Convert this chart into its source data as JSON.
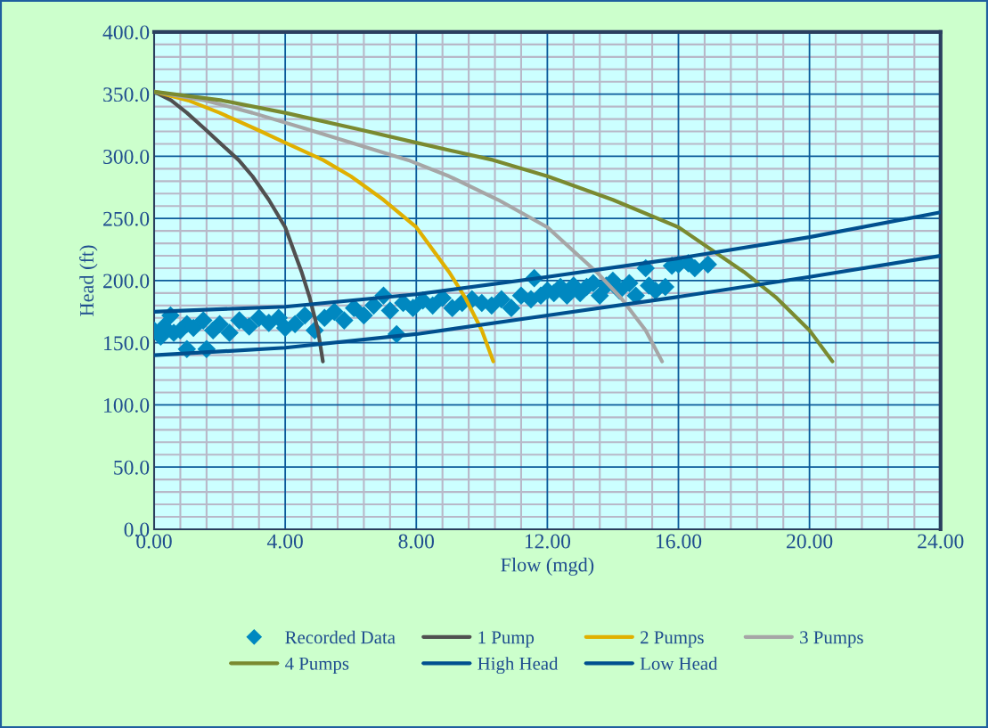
{
  "chart_data": {
    "type": "line",
    "xlabel": "Flow (mgd)",
    "ylabel": "Head (ft)",
    "xlim": [
      0,
      24
    ],
    "ylim": [
      0,
      400
    ],
    "xticks": [
      {
        "value": 0,
        "label": "0.00"
      },
      {
        "value": 4,
        "label": "4.00"
      },
      {
        "value": 8,
        "label": "8.00"
      },
      {
        "value": 12,
        "label": "12.00"
      },
      {
        "value": 16,
        "label": "16.00"
      },
      {
        "value": 20,
        "label": "20.00"
      },
      {
        "value": 24,
        "label": "24.00"
      }
    ],
    "yticks": [
      {
        "value": 0,
        "label": "0.0"
      },
      {
        "value": 50,
        "label": "50.0"
      },
      {
        "value": 100,
        "label": "100.0"
      },
      {
        "value": 150,
        "label": "150.0"
      },
      {
        "value": 200,
        "label": "200.0"
      },
      {
        "value": 250,
        "label": "250.0"
      },
      {
        "value": 300,
        "label": "300.0"
      },
      {
        "value": 350,
        "label": "350.0"
      },
      {
        "value": 400,
        "label": "400.0"
      }
    ],
    "grid": true,
    "legend": "bottom",
    "series": [
      {
        "name": "Recorded Data",
        "type": "scatter",
        "marker": "diamond",
        "color": "#0088c0",
        "x": [
          0.0,
          0.2,
          0.3,
          0.5,
          0.6,
          0.8,
          1.0,
          1.0,
          1.2,
          1.5,
          1.6,
          1.8,
          2.0,
          2.3,
          2.6,
          2.9,
          3.2,
          3.5,
          3.8,
          4.0,
          4.3,
          4.6,
          4.9,
          5.2,
          5.5,
          5.8,
          6.1,
          6.4,
          6.7,
          7.0,
          7.2,
          7.4,
          7.6,
          7.9,
          8.2,
          8.5,
          8.8,
          9.1,
          9.4,
          9.7,
          10.0,
          10.3,
          10.6,
          10.9,
          11.2,
          11.5,
          11.6,
          11.8,
          12.0,
          12.2,
          12.4,
          12.6,
          12.8,
          13.0,
          13.2,
          13.4,
          13.6,
          13.8,
          14.0,
          14.2,
          14.5,
          14.7,
          15.0,
          15.1,
          15.3,
          15.6,
          15.8,
          16.0,
          16.3,
          16.5,
          16.9
        ],
        "values": [
          160,
          155,
          163,
          172,
          158,
          160,
          145,
          165,
          162,
          168,
          145,
          160,
          165,
          158,
          168,
          163,
          170,
          166,
          170,
          162,
          165,
          172,
          160,
          170,
          175,
          168,
          178,
          172,
          180,
          188,
          176,
          157,
          182,
          178,
          184,
          180,
          186,
          178,
          182,
          185,
          182,
          180,
          185,
          178,
          188,
          185,
          202,
          188,
          192,
          190,
          195,
          188,
          196,
          190,
          195,
          198,
          188,
          196,
          200,
          192,
          198,
          188,
          210,
          196,
          192,
          195,
          212,
          213,
          214,
          210,
          213
        ]
      },
      {
        "name": "1 Pump",
        "color": "#505050",
        "x": [
          0,
          0.52,
          1.0,
          1.55,
          2.0,
          2.58,
          3.0,
          3.5,
          4.0,
          4.5,
          4.75,
          5.0,
          5.15
        ],
        "values": [
          352,
          345,
          335,
          322,
          311,
          297,
          284,
          265,
          243,
          207,
          186,
          160,
          135
        ]
      },
      {
        "name": "2 Pumps",
        "color": "#e0b000",
        "x": [
          0,
          1.04,
          2.0,
          3.1,
          4.0,
          5.16,
          6.0,
          7.0,
          8.0,
          9.0,
          9.5,
          10.0,
          10.35
        ],
        "values": [
          352,
          345,
          335,
          322,
          311,
          297,
          284,
          265,
          243,
          207,
          186,
          160,
          135
        ]
      },
      {
        "name": "3 Pumps",
        "color": "#a6a6a6",
        "x": [
          0,
          1.55,
          3.0,
          4.65,
          6.0,
          7.75,
          9.0,
          10.5,
          12.0,
          13.5,
          14.25,
          15.0,
          15.5
        ],
        "values": [
          352,
          345,
          335,
          322,
          311,
          297,
          284,
          265,
          243,
          207,
          186,
          160,
          135
        ]
      },
      {
        "name": "4 Pumps",
        "color": "#7a8a30",
        "x": [
          0,
          2.07,
          4.0,
          6.2,
          8.0,
          10.35,
          12.0,
          14.0,
          16.0,
          18.0,
          19.0,
          20.0,
          20.7
        ],
        "values": [
          352,
          345,
          335,
          322,
          311,
          297,
          284,
          265,
          243,
          207,
          186,
          160,
          135
        ]
      },
      {
        "name": "High Head",
        "color": "#00508f",
        "x": [
          0,
          4,
          8,
          12,
          16,
          20,
          24
        ],
        "values": [
          175,
          179,
          189,
          203,
          218,
          235,
          255
        ]
      },
      {
        "name": "Low Head",
        "color": "#00508f",
        "x": [
          0,
          4,
          8,
          12,
          16,
          20,
          24
        ],
        "values": [
          140,
          146,
          157,
          172,
          187,
          203,
          220
        ]
      }
    ]
  }
}
